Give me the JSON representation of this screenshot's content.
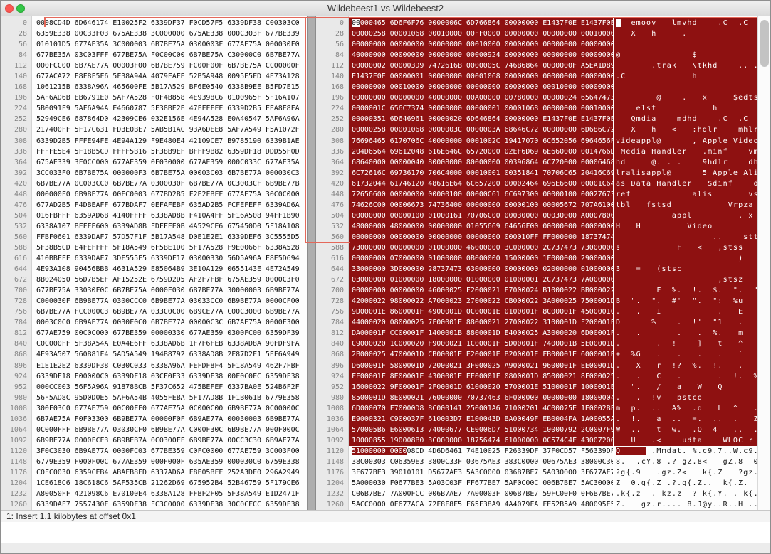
{
  "window": {
    "title": "Wildebeest1 vs Wildebeest2"
  },
  "status_bar": {
    "text": "1: Insert 1.1 kilobytes at offset 0x1"
  },
  "colors": {
    "highlight_bg": "#8E1111",
    "highlight_text": "#FFFFFF",
    "connector": "#E4685A",
    "close_button": "#FC5753",
    "zoom_button": "#33C748"
  },
  "diff": {
    "right_row0_unchanged_hex_chars": 2,
    "right_row0_unchanged_ascii_chars": 1,
    "right_partial_row_index": 40,
    "right_partial_row_highlight_hex_chars": 13,
    "right_partial_row_highlight_ascii_chars": 6
  },
  "left_pane": {
    "offsets": [
      0,
      28,
      56,
      84,
      112,
      140,
      168,
      196,
      224,
      252,
      280,
      308,
      336,
      364,
      392,
      420,
      448,
      476,
      504,
      532,
      560,
      588,
      616,
      644,
      672,
      700,
      728,
      756,
      784,
      812,
      840,
      868,
      896,
      924,
      952,
      980,
      1008,
      1036,
      1064,
      1092,
      1120,
      1148,
      1176,
      1204,
      1232,
      1260
    ],
    "rows": [
      "0008CD4D 6D646174 E10025F2 6339DF37 F0CD57F5 6339DF38 C00303C0",
      "6359E338 00C33F03 675AE338 3C000000 675AE338 000C303F 677BE339",
      "010101D5 677AE35A 3C000003 6B7BE75A 0300003F 677AE75A 000030F0",
      "677BE35A 03C03FFF 677BE75A F0C00C00 6B7BE75A C30000C0 6B7BE77A",
      "000FCC00 6B7AE77A 00003F00 6B7BE759 FC00F00F 6B7BE75A CC00000F",
      "677ACA72 F8F8F5F6 5F38A94A 4079FAFE 52B5A948 0095E5FD 4E73A128",
      "1061215B 6338A96A 465600FE 5B17A529 BF6E0540 6338B9EE B5FD7E15",
      "5AF6AD6B EB6791E0 5AF7A528 F0F4B858 4E9398C6 0100965F 5F16A107",
      "5B0091F9 5AF6A94A E4660787 5F38BE2E 47FFFFFF 6339D2B5 FEA8E8FA",
      "52949CE6 687864D0 42309CE6 032E156E 4E94A528 E0A40547 5AF6A96A",
      "217400FF 5F17C631 FD3E0BE7 5AB5B1AC 93A6DEE8 5AF7A549 F5A1072F",
      "6339D2B5 FFFE94FE 4E94A129 F9E480E4 42109CE7 B9785190 6339B1AE",
      "FFFFE5E4 5F18B5CD FFFF5B16 5F38B9EF BFFF9B82 6359DF18 DDD55F0D",
      "675AE339 3F0CC000 677AE359 0F030000 677AE359 000C033C 677AE35A",
      "3CC033F0 6B7BE75A 000000F3 6B7BE75A 00003C03 6B7BE77A 000030C3",
      "6B7BE77A 0C003CC0 6B7BE77A 0300030F 6B7BE77A 0C3003CF 6B9BE77B",
      "000000F0 6B9BE77A 00FC0003 677BD2B5 F2E2FBFF 677AE75A 30C0C000",
      "677AD2B5 F4DBEAFF 677BDAF7 0EFAFEBF 635AD2B5 FCFEFEFF 6339AD6A",
      "016FBFFF 6359AD6B 4140FFFF 6338AD8B F410A4FF 5F16A508 94FF1B90",
      "6338A107 BFFFE600 6339AD8B FDFFFE0B 4A529CE6 675450D0 5F18A108",
      "FFBF0601 6339DAF7 57D57F1F 5B17A548 D0E1E2E1 6339DEF6 3C5555D5",
      "5F38B5CD E4FEFFFF 5F18A549 6F5BE1D0 5F17A528 F9E0066F 6338A528",
      "410BBFFF 6339DAF7 3DF555F5 6339DF17 03000330 56D5A96A F8E5D694",
      "4E93A108 90456BBB 4631A529 E85064B9 3E10A129 0655143E 4E72A549",
      "8B024050 56D7B5EF AF15252E 6759D2D5 AF2F7FBF 675AE359 0000C3F0",
      "677BE75A 33030F0C 6B7BE75A 0000F030 6B7BE77A 30000003 6B9BE77A",
      "C000030F 6B9BE77A 0300CCC0 6B9BE77A 03033CC0 6B9BE77A 0000CF00",
      "6B7BE77A FCC000C3 6B9BE77A 033C0C00 6B9CE77A C00C3000 6B9BE77A",
      "0003C0C0 6B9AE77A 0030F0C0 6B7BE77A 00000C3C 6B7AE75A 0000F300",
      "677AE759 00C0C000 677BE359 00000330 677AE359 0300FC00 6359DF39",
      "C0C000FF 5F38A54A E0A4E6FF 6338AD6B 1F7F6FEB 6338AD8A 90FDF9FA",
      "4E93A507 560B81F4 5AD5A549 194B8792 6338AD8B 2F87D2F1 5EF6A949",
      "E1E1E2E2 6339DF38 C030C033 6338A96A FEFDF8F4 5F18A549 462F7FBF",
      "6339DF18 F00000C0 6339DF18 03CF0F33 6339DF38 00F0C0FC 6359DF38",
      "000CC003 56F5A96A 91878BCB 5F37C652 475BEFEF 6337BA0E 524B6F2F",
      "56F5AD8C 95D0D0E5 5AF6A54B 4055FEBA 5F17AD8B 1F1B061B 6779E358",
      "300F03C0 677AE759 00C00FF0 677AE75A 0C000C00 6B9BE77A 0C00000C",
      "6B7AE75A F0F03300 6B9BE77A 00000F0F 6B9AE77A 00030003 6B9BE77A",
      "0C000FFF 6B9BE77A 03030CF0 6B9BE77A C000F30C 6B9BE77A 000F000C",
      "6B9BE77A 0000FCF3 6B9BEB7A 0C0300FF 6B9BE77A 00CC3C30 6B9AE77A",
      "3F0C3030 6B9AE77A 0000FC03 677BE359 C0FC0000 677AE759 3C003F00",
      "6779E359 F000F00C 677AE359 000F000F 635AE359 000030C0 6759E338",
      "C0FC0030 6359CEB4 ABAFB8FD 6337AD6A F8E05BFF 252A3DF0 296A2949",
      "1CE618C6 18C618C6 5AF535CB 21262D69 675952B4 52B46759 5F179CE6",
      "A80050FF 421098C6 E70100E4 6338A128 FFBF2F05 5F38A549 E1D2471F",
      "6339DAF7 7557430F 6359DF38 FC3C0000 6339DF38 30C0CFCC 6359DF38"
    ]
  },
  "right_pane": {
    "offsets": [
      0,
      28,
      56,
      84,
      112,
      140,
      168,
      196,
      224,
      252,
      280,
      308,
      336,
      364,
      392,
      420,
      448,
      476,
      504,
      532,
      560,
      588,
      616,
      644,
      672,
      700,
      728,
      756,
      784,
      812,
      840,
      868,
      896,
      924,
      952,
      980,
      1008,
      1036,
      1064,
      1092,
      1120,
      1148,
      1176,
      1204,
      1232,
      1260
    ],
    "rows": [
      "00000465 6D6F6F76 0000006C 6D766864 00000000 E1437F0E E1437F0E",
      "00000258 00001068 00010000 00FF0000 00000000 00000000 00010000",
      "00000000 00000000 00000000 00010000 00000000 00000000 00000000",
      "40000000 00000000 00000000 00000924 00000000 00000000 00000000",
      "00000002 000003D9 7472616B 0000005C 746B6864 0000000F A5EA1D89",
      "E1437F0E 00000001 00000000 00001068 00000000 00000000 00000000",
      "00000000 00010000 00000000 00000000 00000000 00010000 00000000",
      "00000000 00000000 40000000 00A00000 00780000 00000024 65647473",
      "0000001C 656C7374 00000000 00000001 00001068 00000000 00010000",
      "00000351 6D646961 00000020 6D646864 00000000 E1437F0E E1437F0E",
      "00000258 00001068 0000003C 0000003A 68646C72 00000000 6D686C72",
      "76696465 6170706C 40000000 0001002C 19417070 6C652056 6964656F",
      "204D6564 69612048 616E646C 65720000 02EF6D69 6E660000 0014766D",
      "68640000 00000040 80008000 80000000 00396864 6C720000 00006468",
      "6C72616C 69736170 706C4000 00010001 00351841 70706C65 20416C69",
      "61732044 61746120 48616E64 6C657200 00002464 696E6600 00001C64",
      "72656600 00000000 00000100 00000C61 6C697300 00000100 00027673",
      "74626C00 00006673 74736400 00000000 00000100 00005672 707A6100",
      "00000000 00000100 01000161 70706C00 00030000 00030000 A0007800",
      "48000000 48000000 00000000 01055669 64656F00 00000000 00000000",
      "00000000 00000000 00000000 00000000 000010FF FF000000 18737474",
      "73000000 00000000 01000000 46000000 3C000000 2C737473 73000000",
      "00000000 07000000 01000000 0B000000 15000000 1F000000 29000000",
      "33000000 3D000000 28737473 63000000 00000000 02000000 01000000",
      "03000000 01000000 18000000 01000000 01000001 2C737473 7A000000",
      "00000000 00000000 46000025 F2000021 E7000024 B1000022 BB000022",
      "42000022 98000022 A7000023 27000022 CB000022 3A000025 7500001D",
      "9D00001E 8600001F 4900001D 0C00001E 0100001F 8C00001F 4500001C",
      "44000020 08000025 7F00001E 88000021 27000022 3100001D F200001F",
      "DA00001F CC00001F 1400001B 8800001D E4000025 A3000020 6D00001F",
      "C9000020 1C000020 F9000021 1C00001F 5D00001F 7400001B 5E00001D",
      "2B000025 4700001D CB00001E E200001E B200001E FB00001E 6000001E",
      "D600001F 5800001D 72000021 3F000025 A9000021 9600001F EE00001D",
      "FF00001F 8E00001E 4300001E EE00001F 0800001D 85000021 8F000025",
      "16000022 9F00001F 2F00001D 61000020 5700001E 5100001F 1000001E",
      "8500001D 8E000021 76000000 70737463 6F000000 00000000 18000004",
      "6D000070 F70000D8 8C000141 250001A6 71000201 4C00025E 1E0002BF",
      "E9000321 C900037F 610003D7 E100043D BA00049F EB0004FA 1A00055A",
      "570005B6 E6000613 74000677 CE0006D7 51000734 10000792 2C0007F9",
      "10000855 190008B0 3C000000 18756474 61000000 0C574C4F 43007200",
      "51000000 000008CD 4D6D6461 74E10025 F26339DF 37F0CD57 F56339DF",
      "38C00303 C06359E3 3800C33F 03675AE3 383C0000 00675AE3 38000C30",
      "3F677BE3 39010101 D5677AE3 5A3C0000 036B7BE7 5A030000 3F677AE7",
      "5A000030 F0677BE3 5A03C03F FF677BE7 5AF0C00C 006B7BE7 5AC30000",
      "C06B7BE7 7A000FCC 006B7AE7 7A00003F 006B7BE7 59FC00F0 0F6B7BE7",
      "5ACC0000 0F677ACA 72F8F8F5 F65F38A9 4A4079FA FE52B5A9 480095E5"
    ]
  }
}
